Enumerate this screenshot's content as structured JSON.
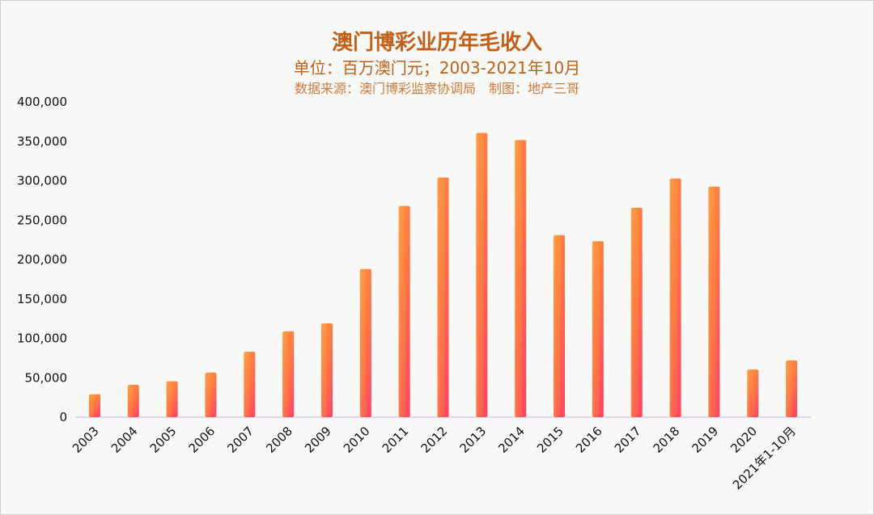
{
  "chart_data": {
    "type": "bar",
    "title": "澳门博彩业历年毛收入",
    "subtitle": "单位：百万澳门元；2003-2021年10月",
    "source": "数据来源：澳门博彩监察协调局　制图：地产三哥",
    "xlabel": "",
    "ylabel": "",
    "ylim": [
      0,
      400000
    ],
    "yticks": [
      "0",
      "50,000",
      "100,000",
      "150,000",
      "200,000",
      "250,000",
      "300,000",
      "350,000",
      "400,000"
    ],
    "categories": [
      "2003",
      "2004",
      "2005",
      "2006",
      "2007",
      "2008",
      "2009",
      "2010",
      "2011",
      "2012",
      "2013",
      "2014",
      "2015",
      "2016",
      "2017",
      "2018",
      "2019",
      "2020",
      "2021年1-10月"
    ],
    "values": [
      29000,
      41000,
      45500,
      56600,
      83000,
      109000,
      119000,
      188000,
      267900,
      304100,
      360700,
      351500,
      231000,
      223200,
      265700,
      302800,
      292500,
      60400,
      72000
    ],
    "grid": "vertical",
    "colors": {
      "bar_top": "#ff9a3c",
      "bar_bottom": "#ff3d68",
      "title": "#c0601a"
    }
  }
}
